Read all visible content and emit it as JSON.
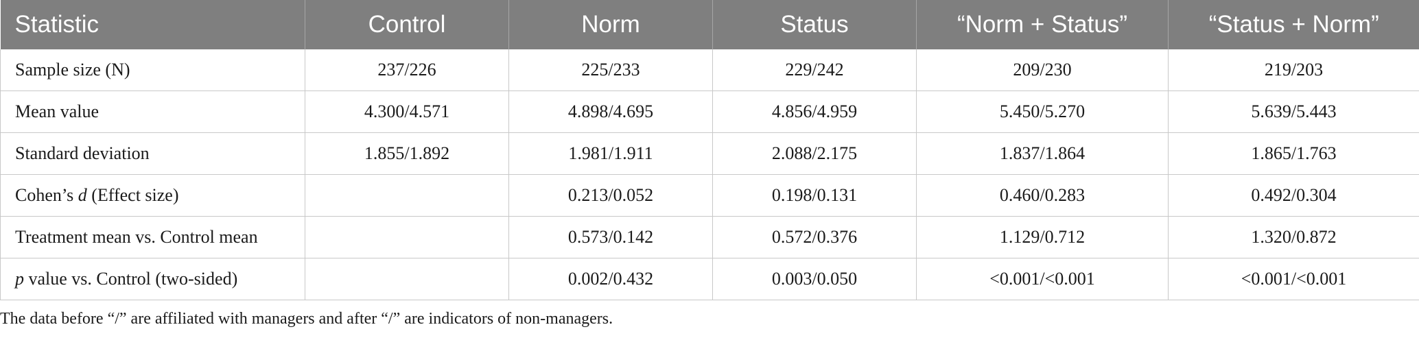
{
  "table": {
    "headers": [
      "Statistic",
      "Control",
      "Norm",
      "Status",
      "“Norm + Status”",
      "“Status + Norm”"
    ],
    "rows": [
      {
        "label_pre": "Sample size (N)",
        "label_italic": "",
        "label_post": "",
        "values": [
          "237/226",
          "225/233",
          "229/242",
          "209/230",
          "219/203"
        ]
      },
      {
        "label_pre": "Mean value",
        "label_italic": "",
        "label_post": "",
        "values": [
          "4.300/4.571",
          "4.898/4.695",
          "4.856/4.959",
          "5.450/5.270",
          "5.639/5.443"
        ]
      },
      {
        "label_pre": "Standard deviation",
        "label_italic": "",
        "label_post": "",
        "values": [
          "1.855/1.892",
          "1.981/1.911",
          "2.088/2.175",
          "1.837/1.864",
          "1.865/1.763"
        ]
      },
      {
        "label_pre": "Cohen’s ",
        "label_italic": "d",
        "label_post": " (Effect size)",
        "values": [
          "",
          "0.213/0.052",
          "0.198/0.131",
          "0.460/0.283",
          "0.492/0.304"
        ]
      },
      {
        "label_pre": "Treatment mean vs. Control mean",
        "label_italic": "",
        "label_post": "",
        "values": [
          "",
          "0.573/0.142",
          "0.572/0.376",
          "1.129/0.712",
          "1.320/0.872"
        ]
      },
      {
        "label_pre": "",
        "label_italic": "p",
        "label_post": " value vs. Control (two-sided)",
        "values": [
          "",
          "0.002/0.432",
          "0.003/0.050",
          "<0.001/<0.001",
          "<0.001/<0.001"
        ]
      }
    ]
  },
  "footnote": "The data before “/” are affiliated with managers and after “/” are indicators of non-managers."
}
